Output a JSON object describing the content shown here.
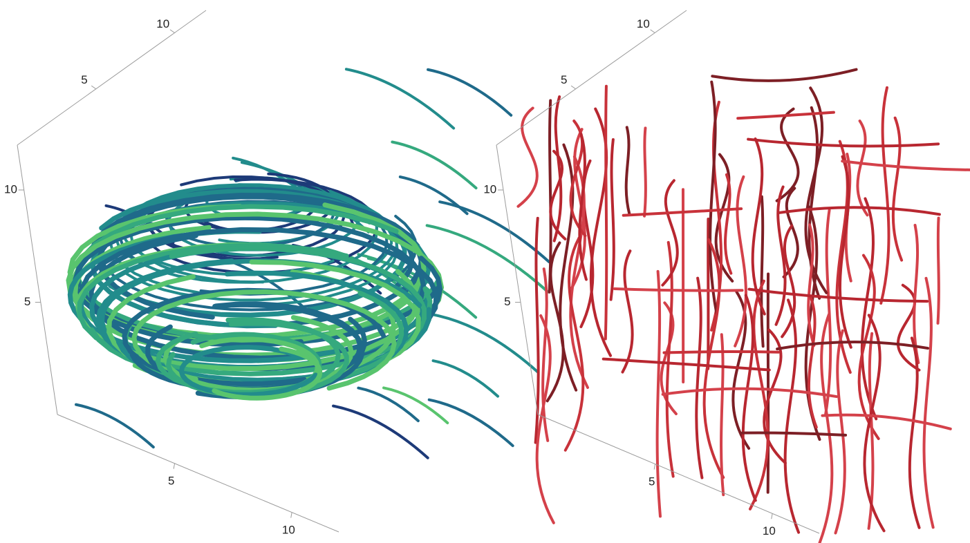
{
  "chart_data": [
    {
      "type": "streamplot3d",
      "xlim": [
        0,
        12
      ],
      "ylim": [
        0,
        12
      ],
      "zlim": [
        0,
        12
      ],
      "xticks": [
        5,
        10
      ],
      "yticks": [
        5,
        10
      ],
      "zticks": [
        5,
        10
      ],
      "colors": [
        "#1d3a78",
        "#1f6a8a",
        "#228c8c",
        "#35a97e",
        "#59c46e"
      ]
    },
    {
      "type": "streamplot3d",
      "xlim": [
        0,
        12
      ],
      "ylim": [
        0,
        12
      ],
      "zlim": [
        0,
        12
      ],
      "xticks": [
        5,
        10
      ],
      "yticks": [
        5,
        10
      ],
      "zticks": [
        5,
        10
      ],
      "colors": [
        "#b82730",
        "#c8323a",
        "#d4414a",
        "#7d1f25"
      ]
    }
  ]
}
